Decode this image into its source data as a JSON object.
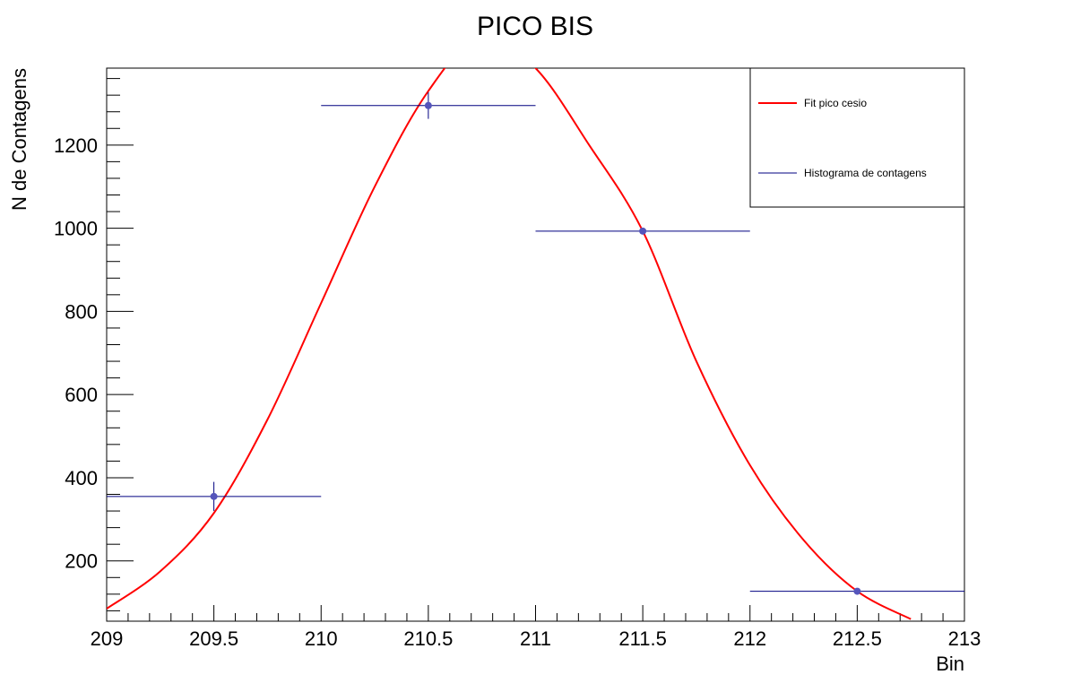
{
  "chart_data": {
    "type": "scatter",
    "title": "PICO BIS",
    "xlabel": "Bin",
    "ylabel": "N de Contagens",
    "xlim": [
      209,
      213
    ],
    "ylim": [
      55,
      1385
    ],
    "x_ticks": [
      "209",
      "209.5",
      "210",
      "210.5",
      "211",
      "211.5",
      "212",
      "212.5",
      "213"
    ],
    "y_ticks": [
      "200",
      "400",
      "600",
      "800",
      "1000",
      "1200"
    ],
    "grid": false,
    "legend_position": "top-right",
    "series": [
      {
        "name": "Histograma de contagens",
        "kind": "histogram",
        "color": "#000080",
        "marker_color": "#5555bb",
        "points": [
          {
            "x": 209.5,
            "y": 355,
            "xerr": 0.5,
            "yerr": 35
          },
          {
            "x": 210.5,
            "y": 1295,
            "xerr": 0.5,
            "yerr": 32
          },
          {
            "x": 211.5,
            "y": 993,
            "xerr": 0.5,
            "yerr": 5
          },
          {
            "x": 212.5,
            "y": 127,
            "xerr": 0.5,
            "yerr": 5
          }
        ]
      },
      {
        "name": "Fit pico cesio",
        "kind": "fit",
        "color": "#ff0000",
        "points": [
          {
            "x": 209.0,
            "y": 85
          },
          {
            "x": 209.25,
            "y": 175
          },
          {
            "x": 209.5,
            "y": 315
          },
          {
            "x": 209.75,
            "y": 540
          },
          {
            "x": 210.0,
            "y": 820
          },
          {
            "x": 210.25,
            "y": 1100
          },
          {
            "x": 210.5,
            "y": 1330
          },
          {
            "x": 210.75,
            "y": 1465
          },
          {
            "x": 211.0,
            "y": 1385
          },
          {
            "x": 211.25,
            "y": 1200
          },
          {
            "x": 211.5,
            "y": 993
          },
          {
            "x": 211.75,
            "y": 680
          },
          {
            "x": 212.0,
            "y": 430
          },
          {
            "x": 212.25,
            "y": 250
          },
          {
            "x": 212.5,
            "y": 127
          },
          {
            "x": 212.75,
            "y": 60
          }
        ]
      }
    ]
  }
}
